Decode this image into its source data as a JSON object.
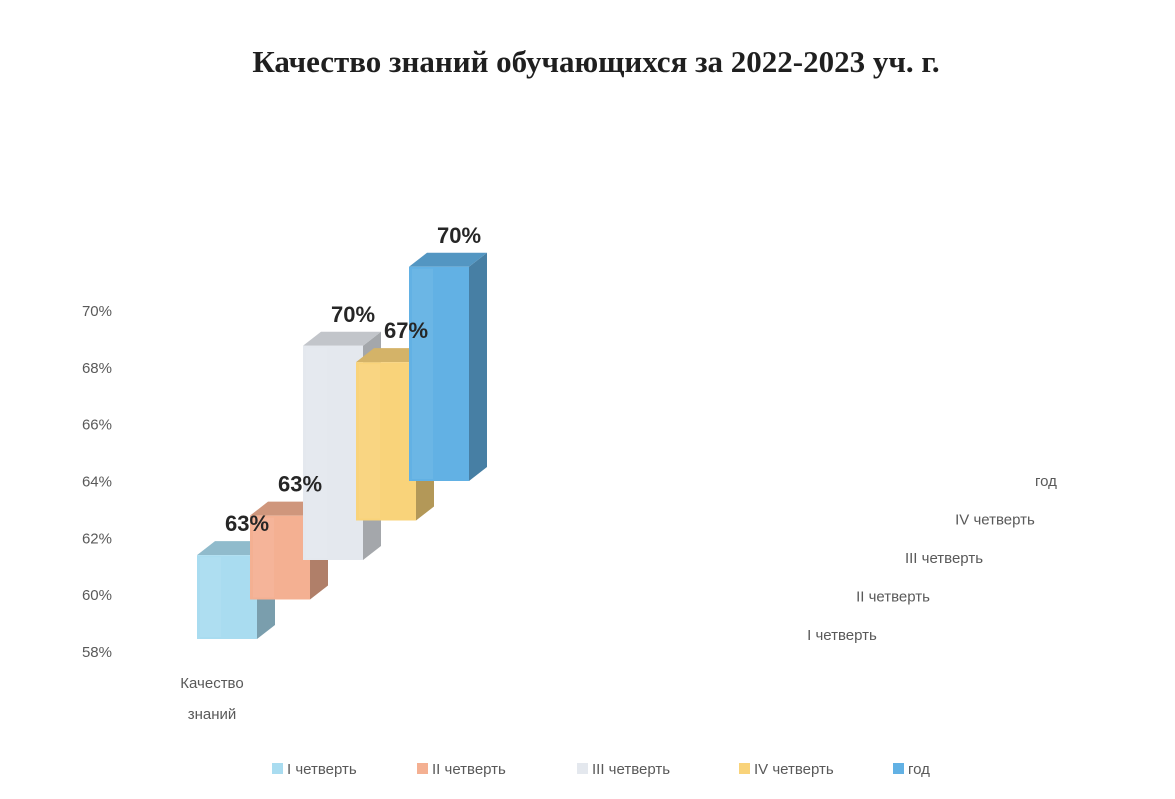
{
  "chart_data": {
    "type": "bar",
    "title": "Качество знаний обучающихся за 2022-2023 уч. г.",
    "categories": [
      "Качество знаний"
    ],
    "series": [
      {
        "name": "I четверть",
        "values": [
          63
        ],
        "label": "63%",
        "color": "#a9dcf0"
      },
      {
        "name": "II четверть",
        "values": [
          63
        ],
        "label": "63%",
        "color": "#f4b092"
      },
      {
        "name": "III четверть",
        "values": [
          70
        ],
        "label": "70%",
        "color": "#e4e8ee"
      },
      {
        "name": "IV четверть",
        "values": [
          67
        ],
        "label": "67%",
        "color": "#f9d37a"
      },
      {
        "name": "год",
        "values": [
          70
        ],
        "label": "70%",
        "color": "#62b1e4"
      }
    ],
    "y_ticks": [
      "58%",
      "60%",
      "62%",
      "64%",
      "66%",
      "68%",
      "70%"
    ],
    "depth_labels": [
      "I четверть",
      "II четверть",
      "III четверть",
      "IV четверть",
      "год"
    ],
    "ylim": [
      58,
      70
    ],
    "grid": false,
    "legend": "bottom"
  }
}
